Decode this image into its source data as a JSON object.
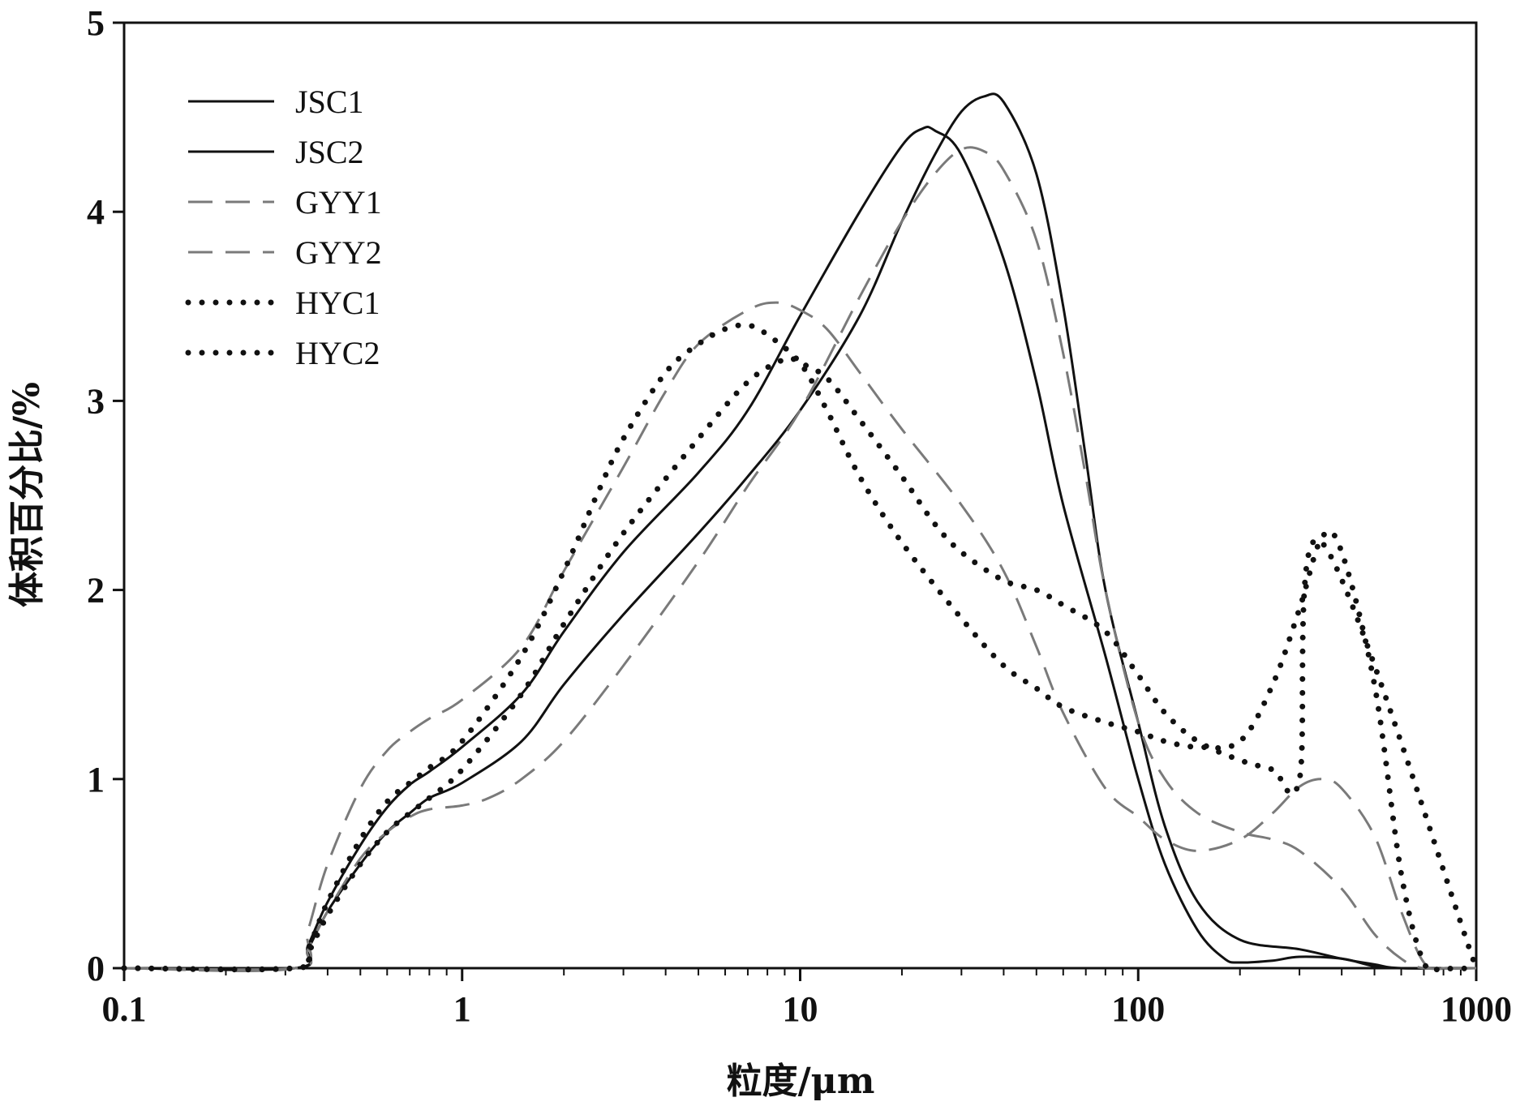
{
  "chart_data": {
    "type": "line",
    "title": "",
    "xlabel": "粒度/μm",
    "ylabel": "体积百分比/%",
    "xscale": "log",
    "xlim": [
      0.1,
      1000
    ],
    "ylim": [
      0,
      5
    ],
    "xticks": [
      0.1,
      1,
      10,
      100,
      1000
    ],
    "xtick_labels": [
      "0.1",
      "1",
      "10",
      "100",
      "1000"
    ],
    "yticks": [
      0,
      1,
      2,
      3,
      4,
      5
    ],
    "ytick_labels": [
      "0",
      "1",
      "2",
      "3",
      "4",
      "5"
    ],
    "legend_position": "top-left",
    "series": [
      {
        "name": "JSC1",
        "style": "solid",
        "color": "#111111",
        "points": [
          [
            0.1,
            0
          ],
          [
            0.32,
            0
          ],
          [
            0.35,
            0.12
          ],
          [
            0.4,
            0.35
          ],
          [
            0.5,
            0.65
          ],
          [
            0.6,
            0.85
          ],
          [
            0.7,
            0.97
          ],
          [
            0.8,
            1.04
          ],
          [
            1,
            1.17
          ],
          [
            1.5,
            1.45
          ],
          [
            2,
            1.78
          ],
          [
            3,
            2.2
          ],
          [
            5,
            2.62
          ],
          [
            7,
            2.95
          ],
          [
            10,
            3.45
          ],
          [
            15,
            4.0
          ],
          [
            20,
            4.35
          ],
          [
            23,
            4.44
          ],
          [
            25,
            4.43
          ],
          [
            30,
            4.3
          ],
          [
            40,
            3.75
          ],
          [
            50,
            3.1
          ],
          [
            60,
            2.45
          ],
          [
            80,
            1.65
          ],
          [
            100,
            1.0
          ],
          [
            120,
            0.55
          ],
          [
            150,
            0.2
          ],
          [
            180,
            0.05
          ],
          [
            200,
            0.03
          ],
          [
            250,
            0.04
          ],
          [
            300,
            0.06
          ],
          [
            400,
            0.05
          ],
          [
            500,
            0.01
          ],
          [
            600,
            0.0
          ],
          [
            1000,
            0
          ]
        ]
      },
      {
        "name": "JSC2",
        "style": "solid",
        "color": "#111111",
        "points": [
          [
            0.1,
            0
          ],
          [
            0.32,
            0
          ],
          [
            0.35,
            0.1
          ],
          [
            0.4,
            0.3
          ],
          [
            0.5,
            0.55
          ],
          [
            0.6,
            0.72
          ],
          [
            0.7,
            0.82
          ],
          [
            0.8,
            0.9
          ],
          [
            1,
            0.98
          ],
          [
            1.5,
            1.2
          ],
          [
            2,
            1.5
          ],
          [
            3,
            1.87
          ],
          [
            5,
            2.3
          ],
          [
            7,
            2.6
          ],
          [
            10,
            2.95
          ],
          [
            15,
            3.45
          ],
          [
            20,
            3.95
          ],
          [
            25,
            4.3
          ],
          [
            30,
            4.53
          ],
          [
            35,
            4.61
          ],
          [
            40,
            4.58
          ],
          [
            50,
            4.2
          ],
          [
            60,
            3.5
          ],
          [
            70,
            2.7
          ],
          [
            80,
            2.0
          ],
          [
            100,
            1.3
          ],
          [
            120,
            0.75
          ],
          [
            150,
            0.35
          ],
          [
            200,
            0.15
          ],
          [
            300,
            0.1
          ],
          [
            400,
            0.05
          ],
          [
            500,
            0.02
          ],
          [
            600,
            0.0
          ],
          [
            1000,
            0
          ]
        ]
      },
      {
        "name": "GYY1",
        "style": "dashed",
        "color": "#7a7a7a",
        "points": [
          [
            0.1,
            0
          ],
          [
            0.32,
            0
          ],
          [
            0.35,
            0.2
          ],
          [
            0.4,
            0.55
          ],
          [
            0.5,
            0.95
          ],
          [
            0.6,
            1.15
          ],
          [
            0.7,
            1.25
          ],
          [
            0.8,
            1.32
          ],
          [
            1,
            1.42
          ],
          [
            1.5,
            1.7
          ],
          [
            2,
            2.1
          ],
          [
            3,
            2.65
          ],
          [
            4,
            3.05
          ],
          [
            5,
            3.3
          ],
          [
            7,
            3.48
          ],
          [
            8.5,
            3.52
          ],
          [
            10,
            3.48
          ],
          [
            12,
            3.38
          ],
          [
            15,
            3.15
          ],
          [
            20,
            2.85
          ],
          [
            30,
            2.45
          ],
          [
            40,
            2.1
          ],
          [
            50,
            1.7
          ],
          [
            60,
            1.35
          ],
          [
            80,
            0.95
          ],
          [
            100,
            0.8
          ],
          [
            120,
            0.68
          ],
          [
            150,
            0.62
          ],
          [
            200,
            0.68
          ],
          [
            250,
            0.82
          ],
          [
            300,
            0.96
          ],
          [
            350,
            1.0
          ],
          [
            400,
            0.95
          ],
          [
            500,
            0.7
          ],
          [
            600,
            0.3
          ],
          [
            700,
            0.03
          ],
          [
            800,
            0
          ],
          [
            1000,
            0
          ]
        ]
      },
      {
        "name": "GYY2",
        "style": "dashed",
        "color": "#7a7a7a",
        "points": [
          [
            0.1,
            0
          ],
          [
            0.32,
            0
          ],
          [
            0.35,
            0.1
          ],
          [
            0.4,
            0.3
          ],
          [
            0.5,
            0.58
          ],
          [
            0.6,
            0.72
          ],
          [
            0.7,
            0.8
          ],
          [
            0.8,
            0.84
          ],
          [
            1,
            0.86
          ],
          [
            1.2,
            0.9
          ],
          [
            1.5,
            1.0
          ],
          [
            2,
            1.2
          ],
          [
            3,
            1.6
          ],
          [
            5,
            2.15
          ],
          [
            7,
            2.55
          ],
          [
            10,
            2.95
          ],
          [
            15,
            3.55
          ],
          [
            20,
            3.95
          ],
          [
            25,
            4.2
          ],
          [
            30,
            4.33
          ],
          [
            35,
            4.32
          ],
          [
            40,
            4.22
          ],
          [
            50,
            3.85
          ],
          [
            60,
            3.25
          ],
          [
            70,
            2.6
          ],
          [
            80,
            2.0
          ],
          [
            100,
            1.3
          ],
          [
            120,
            1.0
          ],
          [
            150,
            0.82
          ],
          [
            200,
            0.72
          ],
          [
            250,
            0.68
          ],
          [
            300,
            0.62
          ],
          [
            400,
            0.42
          ],
          [
            500,
            0.18
          ],
          [
            600,
            0.05
          ],
          [
            700,
            0.0
          ],
          [
            1000,
            0
          ]
        ]
      },
      {
        "name": "HYC1",
        "style": "dotted",
        "color": "#111111",
        "points": [
          [
            0.1,
            0
          ],
          [
            0.32,
            0
          ],
          [
            0.35,
            0.1
          ],
          [
            0.4,
            0.35
          ],
          [
            0.5,
            0.68
          ],
          [
            0.6,
            0.88
          ],
          [
            0.7,
            0.98
          ],
          [
            0.8,
            1.06
          ],
          [
            1,
            1.2
          ],
          [
            1.5,
            1.65
          ],
          [
            2,
            2.1
          ],
          [
            2.5,
            2.5
          ],
          [
            3,
            2.8
          ],
          [
            4,
            3.15
          ],
          [
            5,
            3.3
          ],
          [
            6,
            3.38
          ],
          [
            7,
            3.4
          ],
          [
            8,
            3.35
          ],
          [
            10,
            3.2
          ],
          [
            12,
            2.95
          ],
          [
            15,
            2.6
          ],
          [
            20,
            2.25
          ],
          [
            30,
            1.85
          ],
          [
            40,
            1.6
          ],
          [
            50,
            1.48
          ],
          [
            60,
            1.38
          ],
          [
            80,
            1.3
          ],
          [
            100,
            1.25
          ],
          [
            120,
            1.2
          ],
          [
            150,
            1.17
          ],
          [
            200,
            1.2
          ],
          [
            250,
            1.5
          ],
          [
            300,
            1.9
          ],
          [
            350,
            2.28
          ],
          [
            400,
            2.2
          ],
          [
            500,
            1.5
          ],
          [
            600,
            0.5
          ],
          [
            700,
            0.03
          ],
          [
            800,
            0
          ],
          [
            1000,
            0
          ]
        ]
      },
      {
        "name": "HYC2",
        "style": "dotted",
        "color": "#111111",
        "points": [
          [
            0.1,
            0
          ],
          [
            0.32,
            0
          ],
          [
            0.35,
            0.08
          ],
          [
            0.4,
            0.28
          ],
          [
            0.5,
            0.55
          ],
          [
            0.6,
            0.72
          ],
          [
            0.7,
            0.82
          ],
          [
            0.8,
            0.9
          ],
          [
            1,
            1.05
          ],
          [
            1.5,
            1.45
          ],
          [
            2,
            1.82
          ],
          [
            3,
            2.3
          ],
          [
            5,
            2.8
          ],
          [
            7,
            3.1
          ],
          [
            9,
            3.22
          ],
          [
            10,
            3.2
          ],
          [
            12,
            3.12
          ],
          [
            15,
            2.9
          ],
          [
            20,
            2.6
          ],
          [
            25,
            2.35
          ],
          [
            30,
            2.2
          ],
          [
            40,
            2.05
          ],
          [
            50,
            2.0
          ],
          [
            60,
            1.92
          ],
          [
            80,
            1.78
          ],
          [
            100,
            1.55
          ],
          [
            120,
            1.35
          ],
          [
            150,
            1.2
          ],
          [
            200,
            1.1
          ],
          [
            250,
            1.05
          ],
          [
            300,
            1.0
          ],
          [
            350,
            2.25
          ],
          [
            1000,
            0
          ]
        ]
      }
    ]
  }
}
